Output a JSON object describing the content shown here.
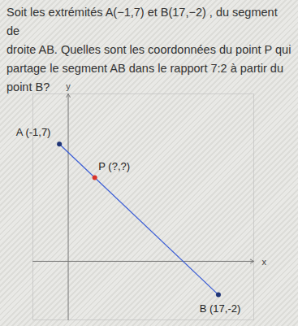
{
  "chart_data": {
    "type": "line",
    "title": "Soit les extrémités  A(−1,7)  et B(17,−2) , du segment de\ndroite AB. Quelles sont les coordonnées du point P  qui\npartage le segment AB dans le rapport 7:2 à partir du\npoint B?",
    "x_label": "x",
    "y_label": "y",
    "x": [
      -1,
      17
    ],
    "values": [
      7,
      -2
    ],
    "color": "#3d5fd6",
    "points": [
      {
        "label": "A (-1,7)",
        "x": -1,
        "y": 7,
        "color": "#1f3577"
      },
      {
        "label": "P (?,?)",
        "x": 3,
        "y": 5,
        "color": "#d8342a"
      },
      {
        "label": "B (17,-2)",
        "x": 17,
        "y": -2,
        "color": "#1f3577"
      }
    ],
    "xlim": [
      -4,
      21
    ],
    "ylim": [
      -3.5,
      10
    ],
    "xticks": [],
    "yticks": [],
    "tick_labels": false,
    "grid": false
  }
}
